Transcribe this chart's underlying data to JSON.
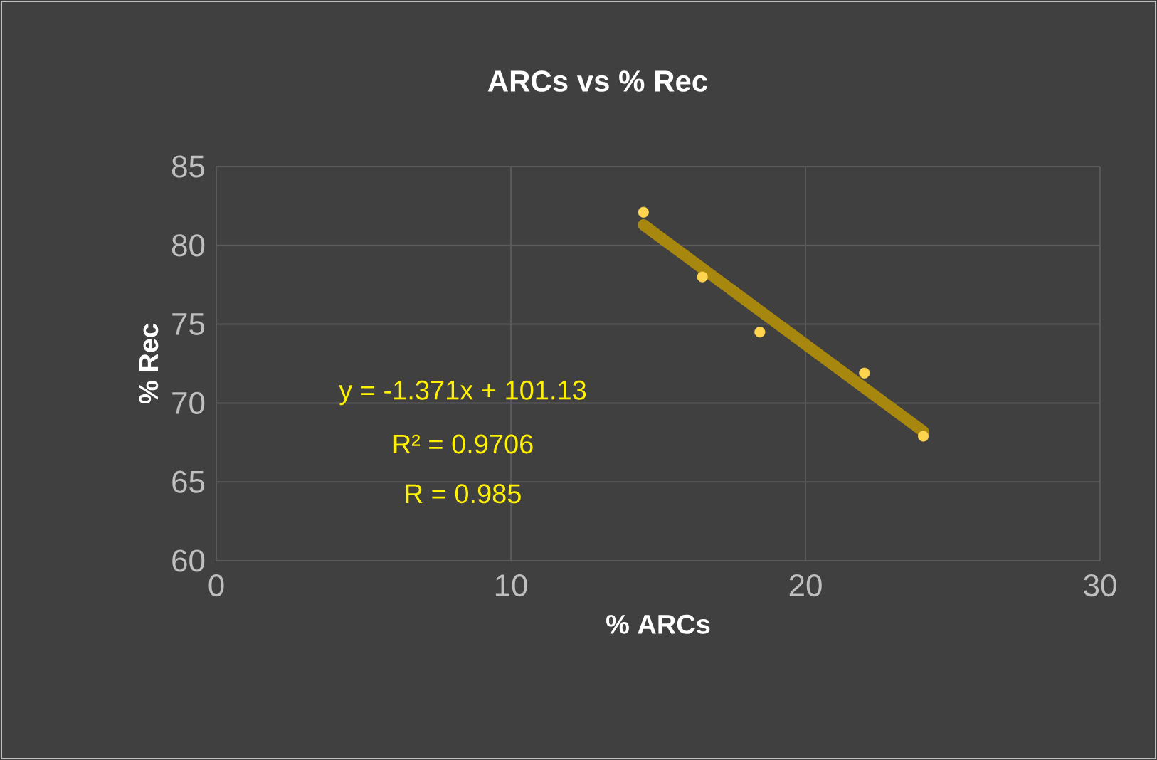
{
  "chart_data": {
    "type": "scatter",
    "title": "ARCs vs % Rec",
    "xlabel": "% ARCs",
    "ylabel": "% Rec",
    "xlim": [
      0,
      30
    ],
    "xticks": [
      0,
      10,
      20,
      30
    ],
    "ylim": [
      60,
      85
    ],
    "yticks": [
      60,
      65,
      70,
      75,
      80,
      85
    ],
    "grid": true,
    "marker": "circle",
    "series": [
      {
        "type": "line",
        "color": "#a8870f",
        "x": [
          14.5,
          24.0
        ],
        "values": [
          81.3,
          68.2
        ],
        "marker": "none"
      },
      {
        "color": "#ffd54f",
        "x": [
          14.5,
          16.5,
          18.45,
          22.0,
          24.0
        ],
        "values": [
          82.1,
          78.0,
          74.5,
          71.9,
          67.9
        ]
      }
    ],
    "annotations": [
      "y = -1.371x + 101.13",
      "R² = 0.9706",
      "R = 0.985"
    ]
  }
}
